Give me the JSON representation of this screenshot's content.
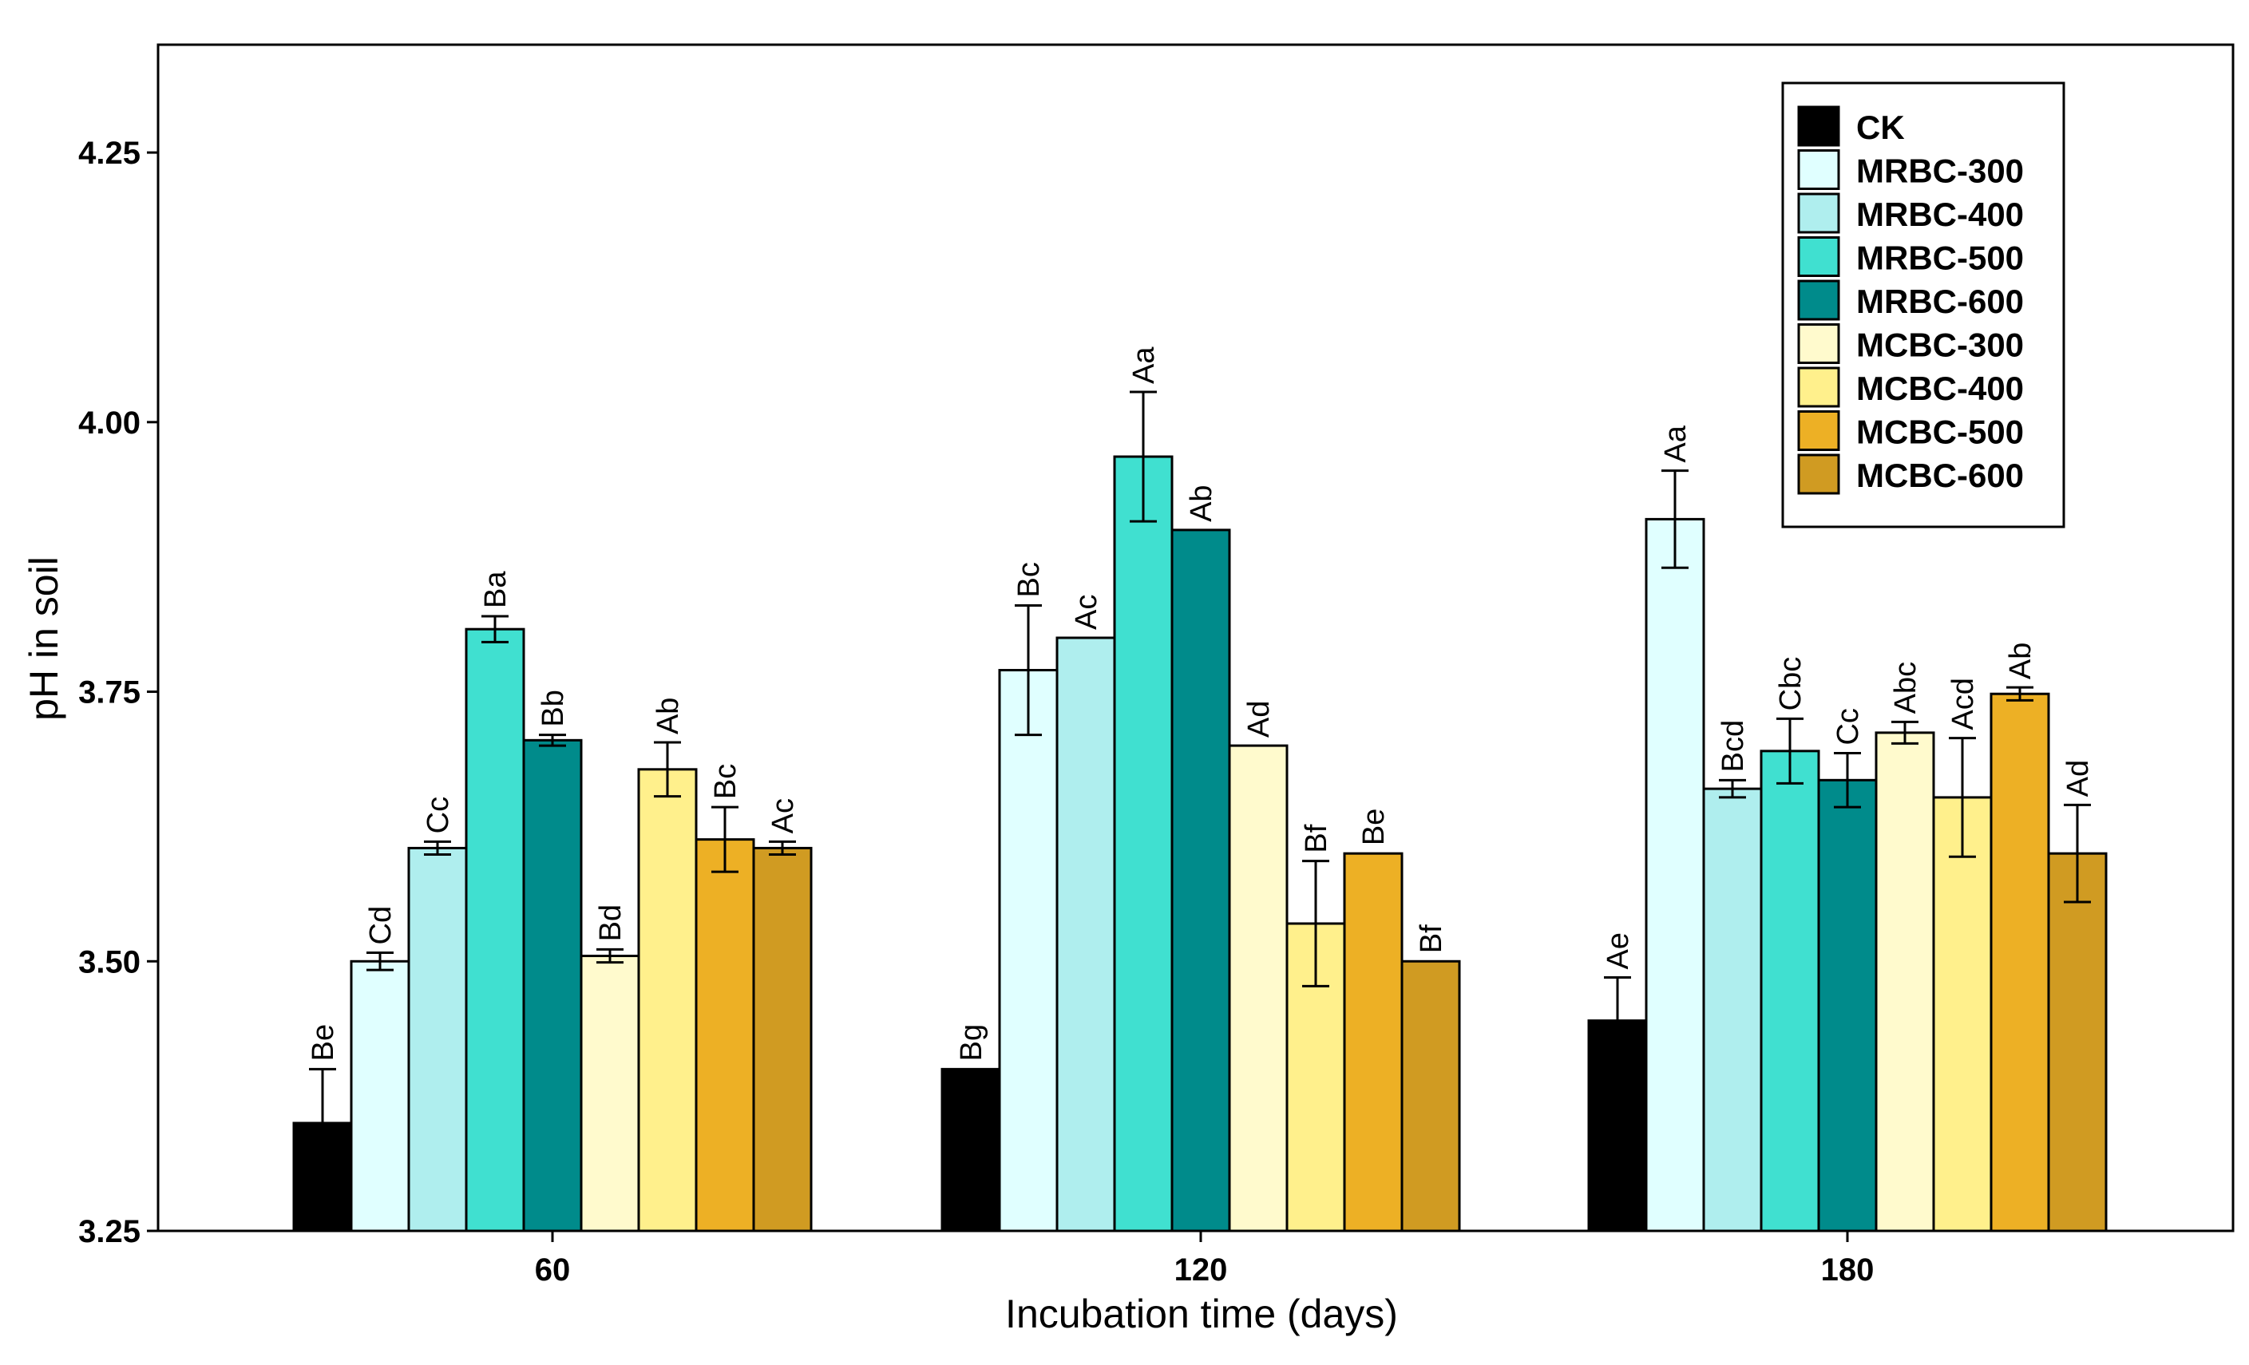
{
  "chart_data": {
    "type": "bar",
    "title": "",
    "xlabel": "Incubation time (days)",
    "ylabel": "pH in soil",
    "ylim": [
      3.25,
      4.35
    ],
    "yticks": [
      "3.25",
      "3.50",
      "3.75",
      "4.00",
      "4.25"
    ],
    "grid": false,
    "legend_position": "top-right",
    "categories": [
      "60",
      "120",
      "180"
    ],
    "series": [
      {
        "name": "CK",
        "color": "#000000",
        "values": [
          3.35,
          3.4,
          3.445
        ],
        "errors": [
          0.05,
          0.0,
          0.04
        ],
        "labels": [
          "Be",
          "Bg",
          "Ae"
        ]
      },
      {
        "name": "MRBC-300",
        "color": "#E0FFFF",
        "values": [
          3.5,
          3.77,
          3.91
        ],
        "errors": [
          0.008,
          0.06,
          0.045
        ],
        "labels": [
          "Cd",
          "Bc",
          "Aa"
        ]
      },
      {
        "name": "MRBC-400",
        "color": "#AFEEEE",
        "values": [
          3.605,
          3.8,
          3.66
        ],
        "errors": [
          0.006,
          0.0,
          0.008
        ],
        "labels": [
          "Cc",
          "Ac",
          "Bcd"
        ]
      },
      {
        "name": "MRBC-500",
        "color": "#40E0D0",
        "values": [
          3.808,
          3.968,
          3.695
        ],
        "errors": [
          0.012,
          0.06,
          0.03
        ],
        "labels": [
          "Ba",
          "Aa",
          "Cbc"
        ]
      },
      {
        "name": "MRBC-600",
        "color": "#008B8B",
        "values": [
          3.705,
          3.9,
          3.668
        ],
        "errors": [
          0.005,
          0.0,
          0.025
        ],
        "labels": [
          "Bb",
          "Ab",
          "Cc"
        ]
      },
      {
        "name": "MCBC-300",
        "color": "#FFFACD",
        "values": [
          3.505,
          3.7,
          3.712
        ],
        "errors": [
          0.006,
          0.0,
          0.01
        ],
        "labels": [
          "Bd",
          "Ad",
          "Abc"
        ]
      },
      {
        "name": "MCBC-400",
        "color": "#FFF08C",
        "values": [
          3.678,
          3.535,
          3.652
        ],
        "errors": [
          0.025,
          0.058,
          0.055
        ],
        "labels": [
          "Ab",
          "Bf",
          "Acd"
        ]
      },
      {
        "name": "MCBC-500",
        "color": "#EDB025",
        "values": [
          3.613,
          3.6,
          3.748
        ],
        "errors": [
          0.03,
          0.0,
          0.006
        ],
        "labels": [
          "Bc",
          "Be",
          "Ab"
        ]
      },
      {
        "name": "MCBC-600",
        "color": "#D09B22",
        "values": [
          3.605,
          3.5,
          3.6
        ],
        "errors": [
          0.006,
          0.0,
          0.045
        ],
        "labels": [
          "Ac",
          "Bf",
          "Ad"
        ]
      }
    ]
  }
}
